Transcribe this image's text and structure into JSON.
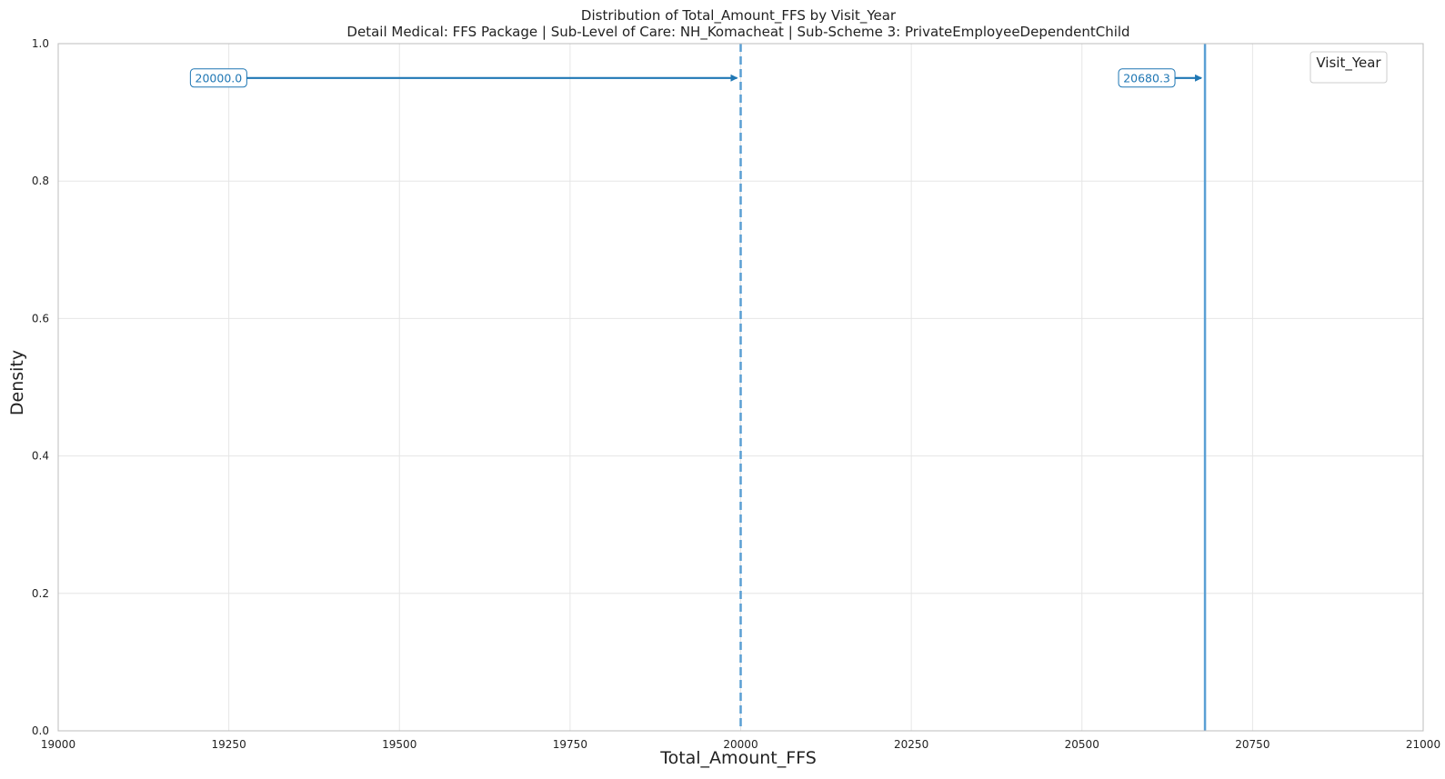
{
  "chart_data": {
    "type": "line",
    "title": "Distribution of Total_Amount_FFS by Visit_Year",
    "subtitle": "Detail Medical: FFS Package | Sub-Level of Care: NH_Komacheat | Sub-Scheme 3: PrivateEmployeeDependentChild",
    "xlabel": "Total_Amount_FFS",
    "ylabel": "Density",
    "xlim": [
      19000,
      21000
    ],
    "ylim": [
      0,
      1.0
    ],
    "x_ticks": [
      19000,
      19250,
      19500,
      19750,
      20000,
      20250,
      20500,
      20750,
      21000
    ],
    "x_tick_labels": [
      "19000",
      "19250",
      "19500",
      "19750",
      "20000",
      "20250",
      "20500",
      "20750",
      "21000"
    ],
    "y_ticks": [
      0.0,
      0.2,
      0.4,
      0.6,
      0.8,
      1.0
    ],
    "y_tick_labels": [
      "0.0",
      "0.2",
      "0.4",
      "0.6",
      "0.8",
      "1.0"
    ],
    "grid": true,
    "legend": {
      "title": "Visit_Year",
      "placement": "top-right",
      "entries": []
    },
    "reference_lines": [
      {
        "x": 20000,
        "style": "dashed",
        "label": "20000.0"
      },
      {
        "x": 20680.3,
        "style": "solid",
        "label": "20680.3"
      }
    ],
    "annotations": [
      {
        "text": "20000.0",
        "text_x": 19235,
        "target_x": 20000,
        "y": 0.95
      },
      {
        "text": "20680.3",
        "text_x": 20595,
        "target_x": 20680.3,
        "y": 0.95
      }
    ],
    "colors": {
      "line": "#5a9fd4",
      "annotation": "#1f77b4",
      "grid": "#e6e6e6",
      "spine": "#bdbdbd"
    }
  }
}
